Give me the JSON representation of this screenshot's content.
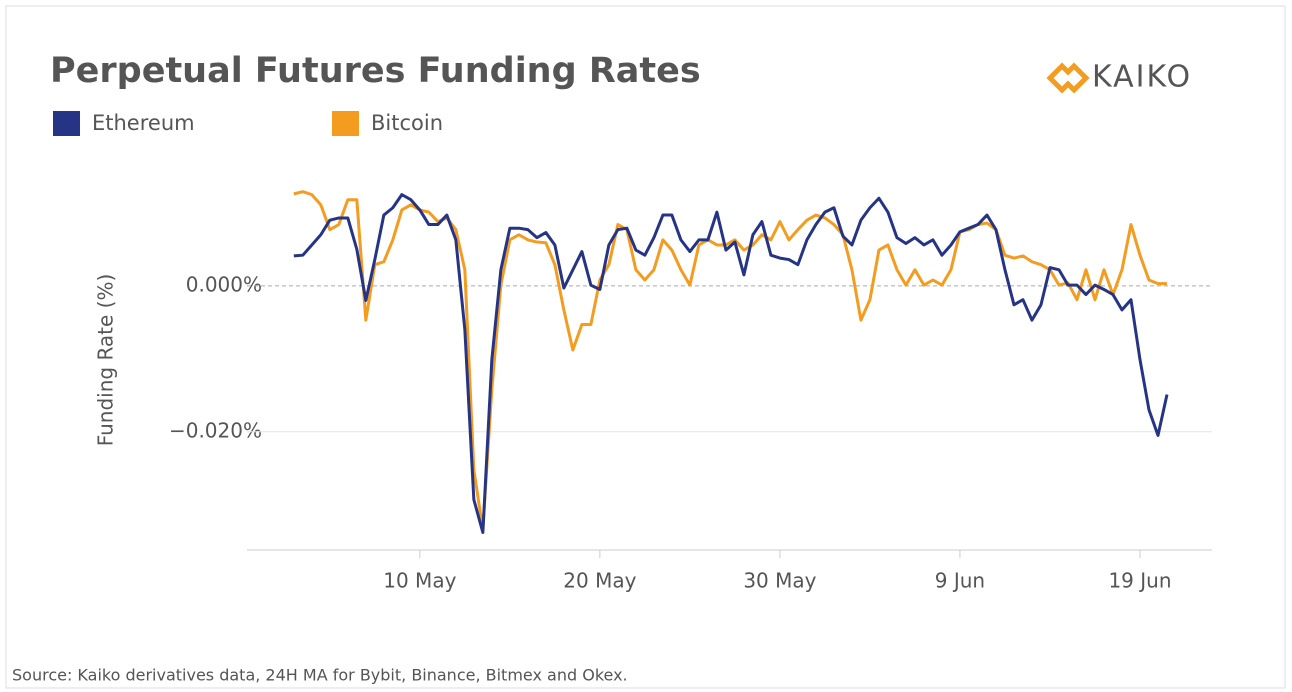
{
  "chart_data": {
    "type": "line",
    "title": "Perpetual Futures Funding Rates",
    "logo": "KAIKO",
    "y_label": "Funding Rate (%)",
    "source": "Source: Kaiko derivatives data, 24H MA for Bybit, Binance, Bitmex and Okex.",
    "x": [
      3,
      3.5,
      4,
      4.5,
      5,
      5.5,
      6,
      6.5,
      7,
      7.5,
      8,
      8.5,
      9,
      9.5,
      10,
      10.5,
      11,
      11.5,
      12,
      12.5,
      13,
      13.5,
      14,
      14.5,
      15,
      15.5,
      16,
      16.5,
      17,
      17.5,
      18,
      18.5,
      19,
      19.5,
      20,
      20.5,
      21,
      21.5,
      22,
      22.5,
      23,
      23.5,
      24,
      24.5,
      25,
      25.5,
      26,
      26.5,
      27,
      27.5,
      28,
      28.5,
      29,
      29.5,
      30,
      30.5,
      31,
      31.5,
      32,
      32.5,
      33,
      33.5,
      34,
      34.5,
      35,
      35.5,
      36,
      36.5,
      37,
      37.5,
      38,
      38.5,
      39,
      39.5,
      40,
      40.5,
      41,
      41.5,
      42,
      42.5,
      43,
      43.5,
      44,
      44.5,
      45,
      45.5,
      46,
      46.5,
      47,
      47.5,
      48,
      48.5,
      49,
      49.5,
      50,
      50.5,
      51,
      51.5
    ],
    "series": [
      {
        "name": "Ethereum",
        "color": "#253485",
        "values": [
          0.0041,
          0.0042,
          0.0056,
          0.007,
          0.009,
          0.0093,
          0.0093,
          0.005,
          -0.002,
          0.0036,
          0.0097,
          0.0107,
          0.0125,
          0.0118,
          0.0104,
          0.0084,
          0.0084,
          0.0097,
          0.0063,
          -0.006,
          -0.0293,
          -0.0338,
          -0.0101,
          0.0022,
          0.0079,
          0.0079,
          0.0077,
          0.0066,
          0.0073,
          0.0056,
          -0.0003,
          0.0022,
          0.0047,
          0.0001,
          -0.0005,
          0.0056,
          0.0077,
          0.0079,
          0.0049,
          0.0042,
          0.0066,
          0.0097,
          0.0097,
          0.0063,
          0.0047,
          0.0063,
          0.0063,
          0.0101,
          0.0049,
          0.006,
          0.0015,
          0.007,
          0.0088,
          0.0042,
          0.0038,
          0.0036,
          0.0029,
          0.0063,
          0.0084,
          0.0101,
          0.0107,
          0.0068,
          0.0056,
          0.009,
          0.0107,
          0.012,
          0.0101,
          0.0066,
          0.0058,
          0.0066,
          0.0056,
          0.0063,
          0.0042,
          0.0056,
          0.0074,
          0.0079,
          0.0084,
          0.0097,
          0.0077,
          0.0022,
          -0.0026,
          -0.0019,
          -0.0047,
          -0.0026,
          0.0025,
          0.0022,
          0.0001,
          0.0001,
          -0.0012,
          0.0001,
          -0.0005,
          -0.0012,
          -0.0033,
          -0.0019,
          -0.0101,
          -0.017,
          -0.0205,
          -0.0149
        ]
      },
      {
        "name": "Bitcoin",
        "color": "#f39c1f",
        "values": [
          0.0126,
          0.0129,
          0.0125,
          0.0111,
          0.0077,
          0.0084,
          0.0118,
          0.0118,
          -0.0047,
          0.0029,
          0.0033,
          0.0063,
          0.0104,
          0.0111,
          0.0104,
          0.0101,
          0.0088,
          0.0093,
          0.0077,
          0.0022,
          -0.0252,
          -0.0334,
          -0.0142,
          0.0001,
          0.0063,
          0.007,
          0.0063,
          0.006,
          0.0059,
          0.0029,
          -0.0033,
          -0.0088,
          -0.0053,
          -0.0053,
          0.0008,
          0.0029,
          0.0084,
          0.0077,
          0.0022,
          0.0008,
          0.0022,
          0.0063,
          0.0049,
          0.0022,
          0.0001,
          0.0056,
          0.0063,
          0.0056,
          0.0056,
          0.0063,
          0.0049,
          0.0056,
          0.007,
          0.0063,
          0.0088,
          0.0063,
          0.0077,
          0.009,
          0.0097,
          0.0093,
          0.0084,
          0.007,
          0.0022,
          -0.0047,
          -0.0019,
          0.0049,
          0.0056,
          0.0022,
          0.0001,
          0.0022,
          0.0001,
          0.0008,
          0.0001,
          0.0022,
          0.0074,
          0.0077,
          0.0084,
          0.0086,
          0.0077,
          0.0042,
          0.0038,
          0.0041,
          0.0033,
          0.0029,
          0.0022,
          0.0001,
          0.0004,
          -0.0019,
          0.0022,
          -0.0019,
          0.0022,
          -0.0012,
          0.0022,
          0.0084,
          0.0042,
          0.0008,
          0.0003,
          0.0003
        ]
      }
    ],
    "xlim": [
      0.4,
      54
    ],
    "xticks": [
      {
        "value": 10,
        "label": "10 May"
      },
      {
        "value": 20,
        "label": "20 May"
      },
      {
        "value": 30,
        "label": "30 May"
      },
      {
        "value": 40,
        "label": "9 Jun"
      },
      {
        "value": 50,
        "label": "19 Jun"
      }
    ],
    "ylim": [
      -0.0362,
      0.0156
    ],
    "yticks": [
      {
        "value": -0.02,
        "label": "−0.020%"
      },
      {
        "value": 0,
        "label": "0.000%"
      }
    ],
    "grid": true
  }
}
